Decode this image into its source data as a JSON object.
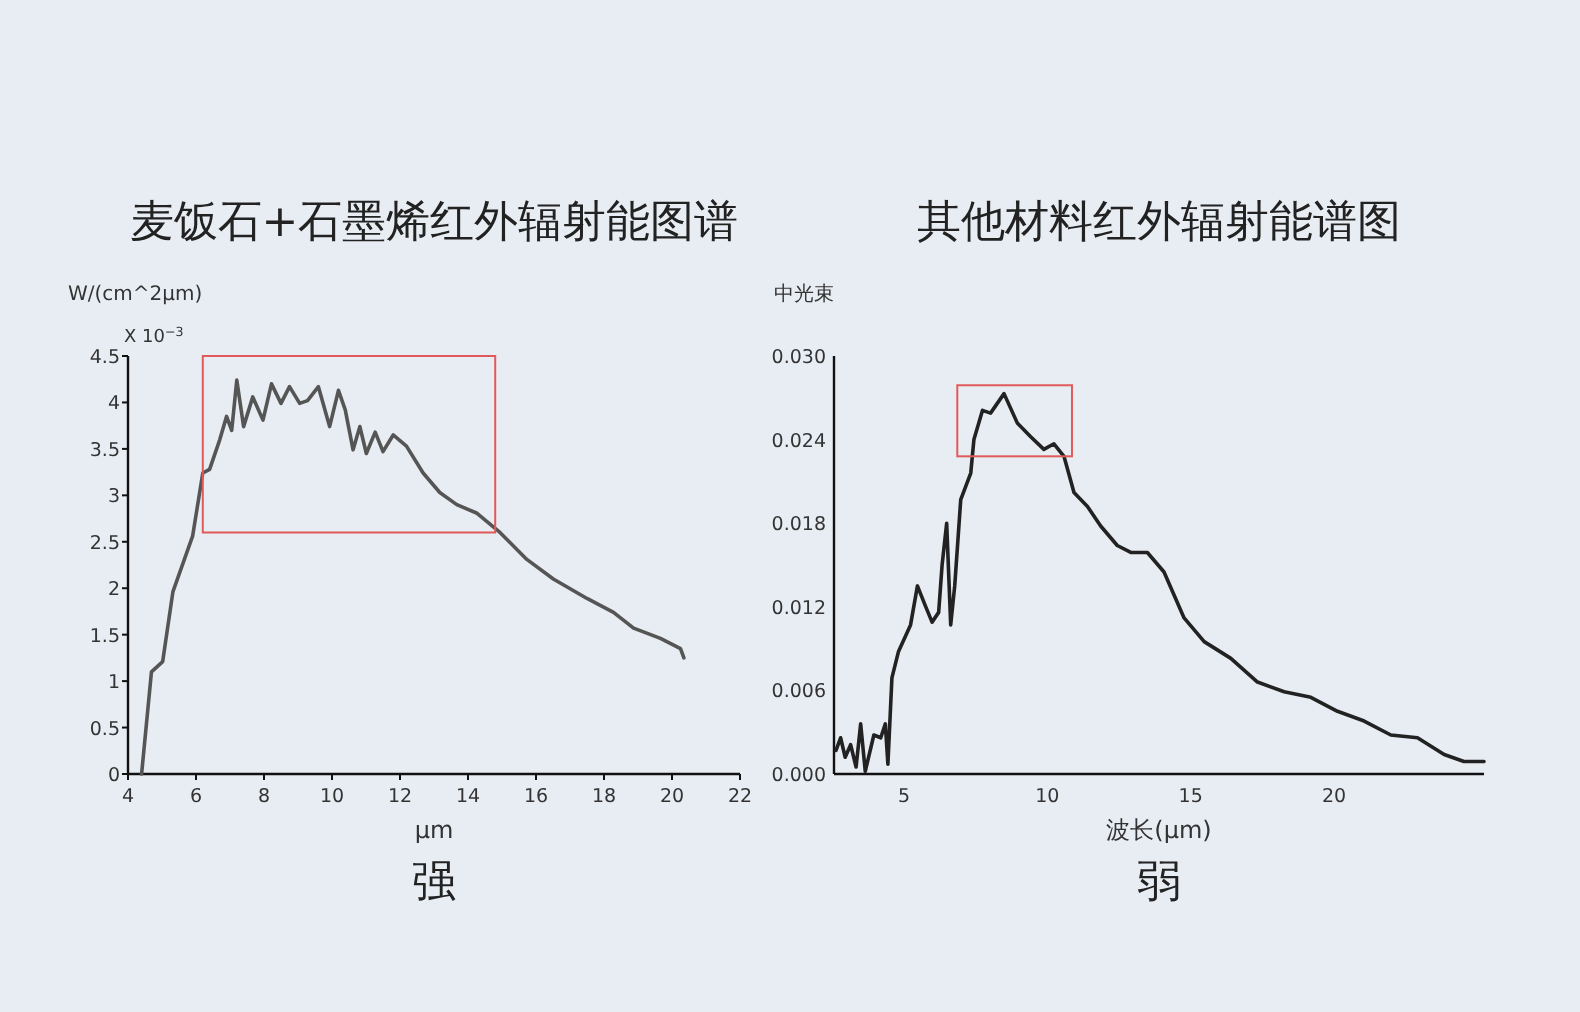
{
  "chart_data": [
    {
      "type": "line",
      "title": "麦饭石+石墨烯红外辐射能图谱",
      "xlabel": "μm",
      "ylabel": "W/(cm^2μm)",
      "annotations": [
        "X 10$^{−3}$",
        "强"
      ],
      "xlim": [
        4,
        22
      ],
      "xticks": [
        4,
        6,
        8,
        10,
        12,
        14,
        16,
        18,
        20,
        22
      ],
      "ylim": [
        0,
        4.5
      ],
      "yticks": [
        0,
        0.5,
        1,
        1.5,
        2,
        2.5,
        3,
        3.5,
        4,
        4.5
      ],
      "x": [
        4.4,
        4.69,
        5.02,
        5.32,
        5.9,
        6.2,
        6.4,
        6.7,
        6.9,
        7.05,
        7.2,
        7.4,
        7.67,
        7.97,
        8.22,
        8.5,
        8.75,
        9.05,
        9.28,
        9.6,
        9.93,
        10.19,
        10.39,
        10.62,
        10.82,
        11.01,
        11.27,
        11.5,
        11.8,
        12.19,
        12.68,
        13.17,
        13.67,
        14.25,
        14.94,
        15.73,
        16.51,
        17.5,
        18.28,
        18.87,
        19.66,
        20.25,
        20.35
      ],
      "series": [
        {
          "color": "#555555",
          "values": [
            0,
            1.1,
            1.21,
            1.96,
            2.56,
            3.24,
            3.28,
            3.6,
            3.85,
            3.7,
            4.24,
            3.74,
            4.06,
            3.81,
            4.2,
            3.99,
            4.17,
            3.99,
            4.02,
            4.17,
            3.74,
            4.13,
            3.92,
            3.49,
            3.74,
            3.45,
            3.68,
            3.47,
            3.65,
            3.53,
            3.24,
            3.03,
            2.9,
            2.81,
            2.6,
            2.31,
            2.1,
            1.89,
            1.74,
            1.57,
            1.46,
            1.35,
            1.25
          ]
        }
      ]
    },
    {
      "type": "line",
      "title": "其他材料红外辐射能谱图",
      "xlabel": "波长(μm)",
      "ylabel": "中光束",
      "annotations": [
        "弱"
      ],
      "xlim": [
        2.56,
        25.23
      ],
      "xticks": [
        5,
        10,
        15,
        20
      ],
      "ylim": [
        0,
        0.03
      ],
      "yticks": [
        {
          "value": 0,
          "label": "0.000"
        },
        {
          "value": 0.006,
          "label": "0.006"
        },
        {
          "value": 0.012,
          "label": "0.012"
        },
        {
          "value": 0.018,
          "label": "0.018"
        },
        {
          "value": 0.024,
          "label": "0.024"
        },
        {
          "value": 0.03,
          "label": "0.030"
        }
      ],
      "x": [
        2.63,
        2.79,
        2.95,
        3.14,
        3.33,
        3.49,
        3.65,
        3.95,
        4.19,
        4.35,
        4.44,
        4.58,
        4.81,
        5.23,
        5.47,
        5.74,
        5.98,
        6.21,
        6.33,
        6.49,
        6.63,
        6.77,
        6.98,
        7.33,
        7.44,
        7.74,
        8.02,
        8.49,
        8.95,
        9.42,
        9.88,
        10.23,
        10.58,
        10.93,
        11.4,
        11.86,
        12.44,
        12.91,
        13.49,
        14.07,
        14.77,
        15.47,
        16.4,
        17.33,
        18.26,
        19.19,
        20.12,
        21.05,
        21.98,
        22.91,
        23.84,
        24.53,
        25.23
      ],
      "series": [
        {
          "color": "#222222",
          "values": [
            0.0017,
            0.0026,
            0.0012,
            0.0021,
            0.0005,
            0.0036,
            0.0002,
            0.0028,
            0.0026,
            0.0036,
            0.0007,
            0.0069,
            0.0088,
            0.0107,
            0.0135,
            0.0121,
            0.0109,
            0.0116,
            0.015,
            0.018,
            0.0107,
            0.0135,
            0.0197,
            0.0216,
            0.024,
            0.0261,
            0.0259,
            0.0273,
            0.0252,
            0.0242,
            0.0233,
            0.0237,
            0.0228,
            0.0202,
            0.0192,
            0.0178,
            0.0164,
            0.0159,
            0.0159,
            0.0145,
            0.0112,
            0.0095,
            0.0083,
            0.0066,
            0.0059,
            0.0055,
            0.0045,
            0.0038,
            0.0028,
            0.0026,
            0.0014,
            0.0009,
            0.0009
          ]
        }
      ]
    }
  ]
}
